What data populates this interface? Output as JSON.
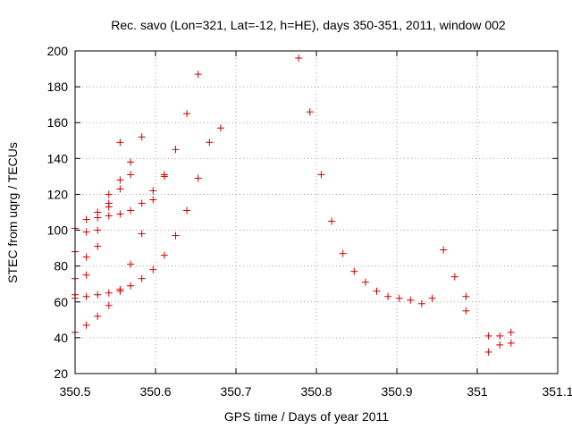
{
  "chart_data": {
    "type": "scatter",
    "title": "Rec. savo (Lon=321, Lat=-12, h=HE), days 350-351, 2011, window 002",
    "xlabel": "GPS time / Days of year 2011",
    "ylabel": "STEC from uqrg / TECUs",
    "xlim": [
      350.5,
      351.1
    ],
    "ylim": [
      20,
      200
    ],
    "grid": true,
    "x_ticks": [
      350.5,
      350.6,
      350.7,
      350.8,
      350.9,
      351.0,
      351.1
    ],
    "x_tick_labels": [
      "350.5",
      "350.6",
      "350.7",
      "350.8",
      "350.9",
      "351",
      "351.1"
    ],
    "y_ticks": [
      20,
      40,
      60,
      80,
      100,
      120,
      140,
      160,
      180,
      200
    ],
    "y_tick_labels": [
      "20",
      "40",
      "60",
      "80",
      "100",
      "120",
      "140",
      "160",
      "180",
      "200"
    ],
    "marker": "+",
    "marker_color": "#cc0000",
    "series": [
      {
        "name": "STEC",
        "points": [
          [
            350.5,
            43
          ],
          [
            350.5,
            62
          ],
          [
            350.5,
            64
          ],
          [
            350.5,
            73
          ],
          [
            350.5,
            88
          ],
          [
            350.5,
            101
          ],
          [
            350.514,
            47
          ],
          [
            350.514,
            63
          ],
          [
            350.514,
            75
          ],
          [
            350.514,
            85
          ],
          [
            350.514,
            99
          ],
          [
            350.514,
            106
          ],
          [
            350.528,
            52
          ],
          [
            350.528,
            64
          ],
          [
            350.528,
            91
          ],
          [
            350.528,
            100
          ],
          [
            350.528,
            107
          ],
          [
            350.528,
            110
          ],
          [
            350.542,
            58
          ],
          [
            350.542,
            65
          ],
          [
            350.542,
            108
          ],
          [
            350.542,
            113
          ],
          [
            350.542,
            115
          ],
          [
            350.542,
            120
          ],
          [
            350.556,
            66
          ],
          [
            350.556,
            67
          ],
          [
            350.556,
            109
          ],
          [
            350.556,
            123
          ],
          [
            350.556,
            128
          ],
          [
            350.556,
            149
          ],
          [
            350.569,
            69
          ],
          [
            350.569,
            81
          ],
          [
            350.569,
            111
          ],
          [
            350.569,
            131
          ],
          [
            350.569,
            138
          ],
          [
            350.583,
            73
          ],
          [
            350.583,
            98
          ],
          [
            350.583,
            115
          ],
          [
            350.583,
            152
          ],
          [
            350.597,
            78
          ],
          [
            350.597,
            117
          ],
          [
            350.597,
            122
          ],
          [
            350.611,
            86
          ],
          [
            350.611,
            130
          ],
          [
            350.611,
            131
          ],
          [
            350.625,
            97
          ],
          [
            350.625,
            145
          ],
          [
            350.639,
            111
          ],
          [
            350.639,
            165
          ],
          [
            350.653,
            129
          ],
          [
            350.653,
            187
          ],
          [
            350.667,
            149
          ],
          [
            350.681,
            157
          ],
          [
            350.778,
            196
          ],
          [
            350.792,
            166
          ],
          [
            350.806,
            131
          ],
          [
            350.819,
            105
          ],
          [
            350.833,
            87
          ],
          [
            350.847,
            77
          ],
          [
            350.861,
            71
          ],
          [
            350.875,
            66
          ],
          [
            350.889,
            63
          ],
          [
            350.903,
            62
          ],
          [
            350.917,
            61
          ],
          [
            350.931,
            59
          ],
          [
            350.944,
            62
          ],
          [
            350.958,
            89
          ],
          [
            350.972,
            74
          ],
          [
            350.986,
            55
          ],
          [
            350.986,
            63
          ],
          [
            351.014,
            32
          ],
          [
            351.014,
            41
          ],
          [
            351.028,
            36
          ],
          [
            351.028,
            41
          ],
          [
            351.042,
            37
          ],
          [
            351.042,
            43
          ]
        ]
      }
    ]
  }
}
